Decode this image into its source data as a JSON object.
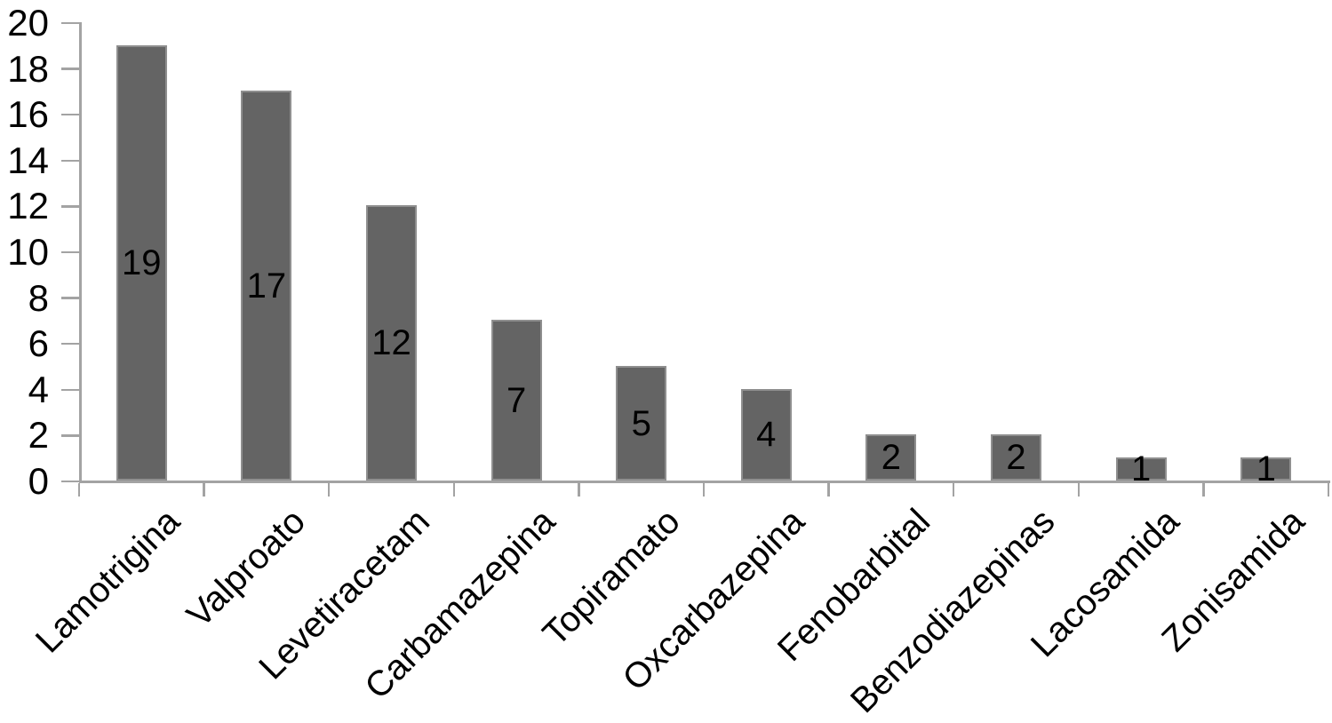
{
  "chart_data": {
    "type": "bar",
    "categories": [
      "Lamotrigina",
      "Valproato",
      "Levetiracetam",
      "Carbamazepina",
      "Topiramato",
      "Oxcarbazepina",
      "Fenobarbital",
      "Benzodiazepinas",
      "Lacosamida",
      "Zonisamida"
    ],
    "values": [
      19,
      17,
      12,
      7,
      5,
      4,
      2,
      2,
      1,
      1
    ],
    "data_labels": [
      19,
      17,
      12,
      7,
      5,
      4,
      2,
      2,
      1,
      1
    ],
    "yticks": [
      20,
      18,
      16,
      14,
      12,
      10,
      8,
      6,
      4,
      2,
      0
    ],
    "ylim": [
      0,
      20
    ],
    "legend": "none",
    "grid": false,
    "data_label_position": "inside-center",
    "x_label_rotation_deg": 45,
    "colors": {
      "bar": "#646464",
      "bar_border": "#8f8f8f",
      "axis": "#a3a3a3",
      "text": "#000000",
      "background": "#ffffff"
    }
  }
}
